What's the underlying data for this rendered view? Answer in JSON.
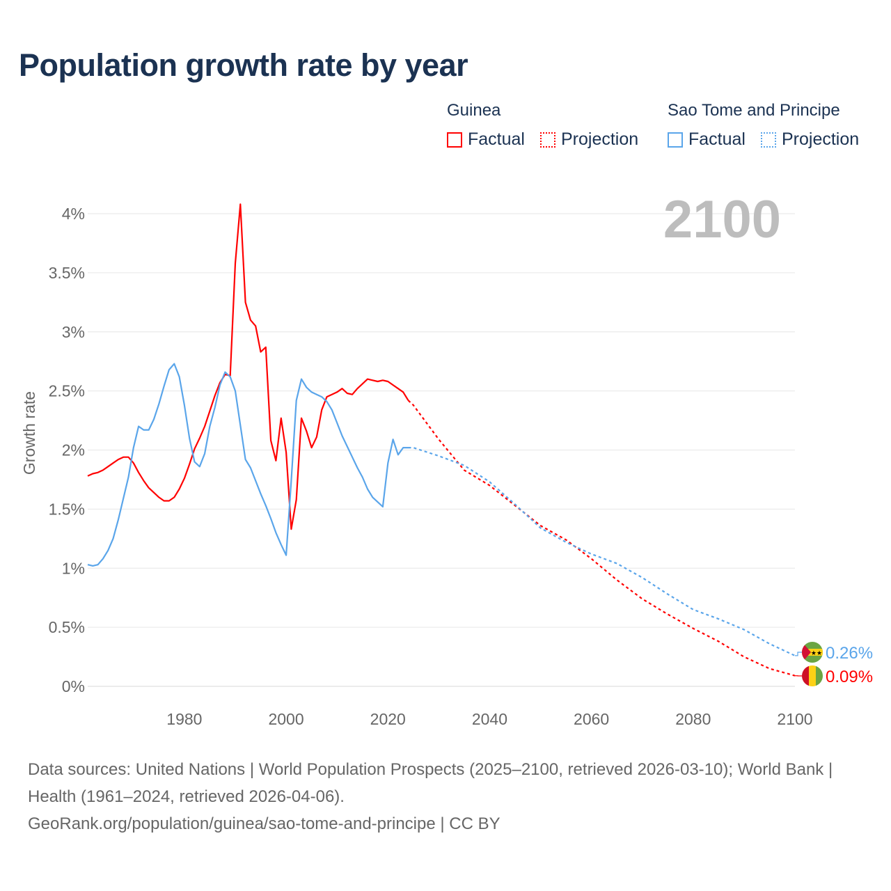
{
  "title": "Population growth rate by year",
  "year_display": "2100",
  "legend": {
    "groups": [
      {
        "country": "Guinea",
        "factual": "Factual",
        "projection": "Projection",
        "color": "#ff0000"
      },
      {
        "country": "Sao Tome and Principe",
        "factual": "Factual",
        "projection": "Projection",
        "color": "#5aa5ea"
      }
    ]
  },
  "footer": {
    "sources": "Data sources: United Nations | World Population Prospects (2025–2100, retrieved 2026-03-10); World Bank | Health (1961–2024, retrieved 2026-04-06).",
    "link": "GeoRank.org/population/guinea/sao-tome-and-principe | CC BY"
  },
  "chart_data": {
    "type": "line",
    "title": "Population growth rate by year",
    "xlabel": "",
    "ylabel": "Growth rate",
    "xlim": [
      1961,
      2100
    ],
    "ylim": [
      0,
      4
    ],
    "x_ticks": [
      1980,
      2000,
      2020,
      2040,
      2060,
      2080,
      2100
    ],
    "y_ticks": [
      0,
      0.5,
      1,
      1.5,
      2,
      2.5,
      3,
      3.5,
      4
    ],
    "y_tick_labels": [
      "0%",
      "0.5%",
      "1%",
      "1.5%",
      "2%",
      "2.5%",
      "3%",
      "3.5%",
      "4%"
    ],
    "grid": true,
    "series": [
      {
        "name": "Guinea",
        "color": "#ff0000",
        "end_label": "0.09%",
        "factual": {
          "x": [
            1961,
            1962,
            1963,
            1964,
            1965,
            1966,
            1967,
            1968,
            1969,
            1970,
            1971,
            1972,
            1973,
            1974,
            1975,
            1976,
            1977,
            1978,
            1979,
            1980,
            1981,
            1982,
            1983,
            1984,
            1985,
            1986,
            1987,
            1988,
            1989,
            1990,
            1991,
            1992,
            1993,
            1994,
            1995,
            1996,
            1997,
            1998,
            1999,
            2000,
            2001,
            2002,
            2003,
            2004,
            2005,
            2006,
            2007,
            2008,
            2009,
            2010,
            2011,
            2012,
            2013,
            2014,
            2015,
            2016,
            2017,
            2018,
            2019,
            2020,
            2021,
            2022,
            2023,
            2024
          ],
          "y": [
            1.78,
            1.8,
            1.81,
            1.83,
            1.86,
            1.89,
            1.92,
            1.94,
            1.94,
            1.89,
            1.81,
            1.74,
            1.68,
            1.64,
            1.6,
            1.57,
            1.57,
            1.6,
            1.67,
            1.76,
            1.88,
            2.01,
            2.1,
            2.2,
            2.33,
            2.46,
            2.57,
            2.64,
            2.63,
            3.58,
            4.08,
            3.25,
            3.1,
            3.05,
            2.83,
            2.87,
            2.08,
            1.91,
            2.27,
            1.98,
            1.33,
            1.58,
            2.27,
            2.16,
            2.02,
            2.11,
            2.34,
            2.45,
            2.47,
            2.49,
            2.52,
            2.48,
            2.47,
            2.52,
            2.56,
            2.6,
            2.59,
            2.58,
            2.59,
            2.58,
            2.55,
            2.52,
            2.49,
            2.42
          ]
        },
        "projection": {
          "x": [
            2024,
            2025,
            2030,
            2035,
            2040,
            2045,
            2050,
            2055,
            2060,
            2065,
            2070,
            2075,
            2080,
            2085,
            2090,
            2095,
            2100
          ],
          "y": [
            2.42,
            2.38,
            2.09,
            1.83,
            1.7,
            1.53,
            1.36,
            1.24,
            1.08,
            0.9,
            0.74,
            0.61,
            0.49,
            0.38,
            0.25,
            0.15,
            0.09
          ]
        }
      },
      {
        "name": "Sao Tome and Principe",
        "color": "#5aa5ea",
        "end_label": "0.26%",
        "factual": {
          "x": [
            1961,
            1962,
            1963,
            1964,
            1965,
            1966,
            1967,
            1968,
            1969,
            1970,
            1971,
            1972,
            1973,
            1974,
            1975,
            1976,
            1977,
            1978,
            1979,
            1980,
            1981,
            1982,
            1983,
            1984,
            1985,
            1986,
            1987,
            1988,
            1989,
            1990,
            1991,
            1992,
            1993,
            1994,
            1995,
            1996,
            1997,
            1998,
            1999,
            2000,
            2001,
            2002,
            2003,
            2004,
            2005,
            2006,
            2007,
            2008,
            2009,
            2010,
            2011,
            2012,
            2013,
            2014,
            2015,
            2016,
            2017,
            2018,
            2019,
            2020,
            2021,
            2022,
            2023,
            2024
          ],
          "y": [
            1.03,
            1.02,
            1.03,
            1.08,
            1.15,
            1.25,
            1.41,
            1.59,
            1.77,
            2.02,
            2.2,
            2.17,
            2.17,
            2.26,
            2.39,
            2.54,
            2.68,
            2.73,
            2.62,
            2.38,
            2.1,
            1.9,
            1.86,
            1.97,
            2.2,
            2.36,
            2.55,
            2.66,
            2.62,
            2.5,
            2.21,
            1.92,
            1.85,
            1.74,
            1.63,
            1.53,
            1.42,
            1.3,
            1.2,
            1.11,
            1.74,
            2.42,
            2.6,
            2.53,
            2.49,
            2.47,
            2.45,
            2.41,
            2.34,
            2.23,
            2.12,
            2.03,
            1.94,
            1.85,
            1.77,
            1.67,
            1.6,
            1.56,
            1.52,
            1.89,
            2.09,
            1.96,
            2.02,
            2.02
          ]
        },
        "projection": {
          "x": [
            2024,
            2025,
            2030,
            2035,
            2040,
            2045,
            2050,
            2055,
            2060,
            2065,
            2070,
            2075,
            2080,
            2085,
            2090,
            2095,
            2100
          ],
          "y": [
            2.02,
            2.02,
            1.95,
            1.87,
            1.73,
            1.54,
            1.34,
            1.22,
            1.12,
            1.04,
            0.92,
            0.78,
            0.65,
            0.57,
            0.48,
            0.36,
            0.26
          ]
        }
      }
    ]
  }
}
